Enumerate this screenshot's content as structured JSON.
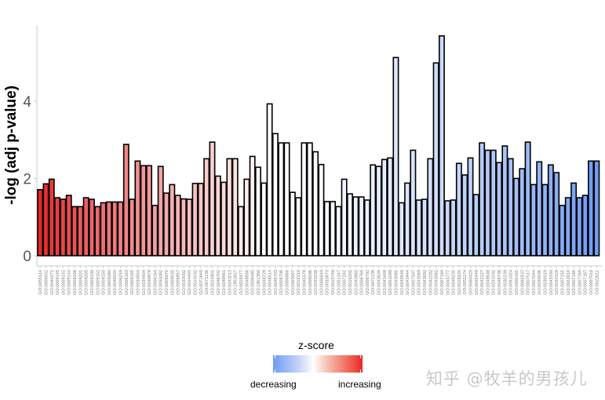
{
  "chart_data": {
    "type": "bar",
    "title": "",
    "xlabel": "",
    "ylabel": "-log (adj p-value)",
    "ylim": [
      -0.25,
      5.95
    ],
    "yticks": [
      0,
      2,
      4
    ],
    "grid": false,
    "legend": {
      "title": "z-score",
      "position": "bottom",
      "low_label": "decreasing",
      "high_label": "increasing",
      "low_color": "#6e9bf5",
      "mid_color": "#ffffff",
      "high_color": "#e8272a"
    },
    "categories": [
      "GO:0055114",
      "GO:0006631",
      "GO:0044271",
      "GO:0009145",
      "GO:0009142",
      "GO:0009144",
      "GO:0009206",
      "GO:0009201",
      "GO:0009205",
      "GO:0009199",
      "GO:0009152",
      "GO:0009150",
      "GO:0009260",
      "GO:0046034",
      "GO:0006259",
      "GO:0006163",
      "GO:0009165",
      "GO:0034654",
      "GO:0034404",
      "GO:0046878",
      "GO:0006164",
      "GO:0055082",
      "GO:0006970",
      "GO:0009035",
      "GO:0006857",
      "GO:0033002",
      "GO:0014403",
      "GO:0014032",
      "GO:0071840",
      "GO:0071136",
      "GO:0014801",
      "GO:0046702",
      "GO:0048661",
      "GO:0043013",
      "GO:1901627",
      "GO:0016477",
      "GO:0048856",
      "GO:0006485",
      "GO:1901360",
      "GO:0048729",
      "GO:0048514",
      "GO:0046703",
      "GO:0006796",
      "GO:0006866",
      "GO:0003007",
      "GO:0016310",
      "GO:0045578",
      "GO:0006096",
      "GO:0033239",
      "GO:0006649",
      "GO:0033673",
      "GO:0015749",
      "GO:0051347",
      "GO:0007242",
      "GO:0016202",
      "GO:0043860",
      "GO:0006766",
      "GO:0006792",
      "GO:0071138",
      "GO:0043639",
      "GO:0043406",
      "GO:0051099",
      "GO:0043085",
      "GO:0043549",
      "GO:0043444",
      "GO:0007507",
      "GO:0043069",
      "GO:0043692",
      "GO:0042282",
      "GO:0043062",
      "GO:0007194",
      "GO:0045777",
      "GO:0048235",
      "GO:0018220",
      "GO:0051174",
      "GO:0060429",
      "GO:0045449",
      "GO:0042127",
      "GO:0048638",
      "GO:0031032",
      "GO:0048738",
      "GO:0030239",
      "GO:0061024",
      "GO:0000165",
      "GO:0060537",
      "GO:0007517",
      "GO:0007044",
      "GO:0030036",
      "GO:0030029",
      "GO:0043330",
      "GO:0034329",
      "GO:0007155",
      "GO:0022610",
      "GO:0007166",
      "GO:0007169",
      "GO:0007167",
      "GO:0007010",
      "GO:0022611"
    ],
    "values": [
      1.71,
      1.86,
      1.98,
      1.5,
      1.46,
      1.56,
      1.27,
      1.27,
      1.5,
      1.46,
      1.27,
      1.37,
      1.39,
      1.39,
      1.39,
      2.88,
      1.46,
      2.45,
      2.33,
      2.33,
      1.3,
      2.31,
      1.62,
      1.84,
      1.56,
      1.47,
      1.46,
      1.87,
      1.87,
      2.51,
      2.94,
      2.06,
      1.9,
      2.51,
      2.51,
      1.27,
      1.98,
      2.57,
      2.29,
      1.88,
      3.93,
      3.16,
      2.92,
      2.92,
      1.64,
      1.5,
      2.92,
      2.92,
      2.69,
      2.36,
      1.4,
      1.4,
      1.27,
      1.98,
      1.6,
      1.52,
      1.52,
      1.44,
      2.35,
      2.31,
      2.49,
      2.53,
      5.13,
      1.37,
      1.88,
      2.73,
      1.44,
      1.46,
      2.51,
      4.99,
      5.69,
      1.42,
      1.44,
      2.39,
      2.09,
      2.53,
      1.58,
      2.92,
      2.73,
      2.73,
      2.41,
      2.84,
      2.51,
      2.0,
      2.25,
      2.94,
      1.84,
      2.43,
      1.84,
      2.35,
      2.15,
      1.3,
      1.5,
      1.88,
      1.5,
      1.56,
      2.45,
      2.45
    ],
    "zscore_rank_note": "bars ordered from most increasing (red, left) to most decreasing (blue, right)"
  },
  "legend": {
    "title": "z-score",
    "low_label": "decreasing",
    "high_label": "increasing"
  },
  "axis": {
    "ylabel": "-log (adj p-value)",
    "yticks": [
      "0",
      "2",
      "4"
    ]
  },
  "watermark": "知乎 @牧羊的男孩儿"
}
